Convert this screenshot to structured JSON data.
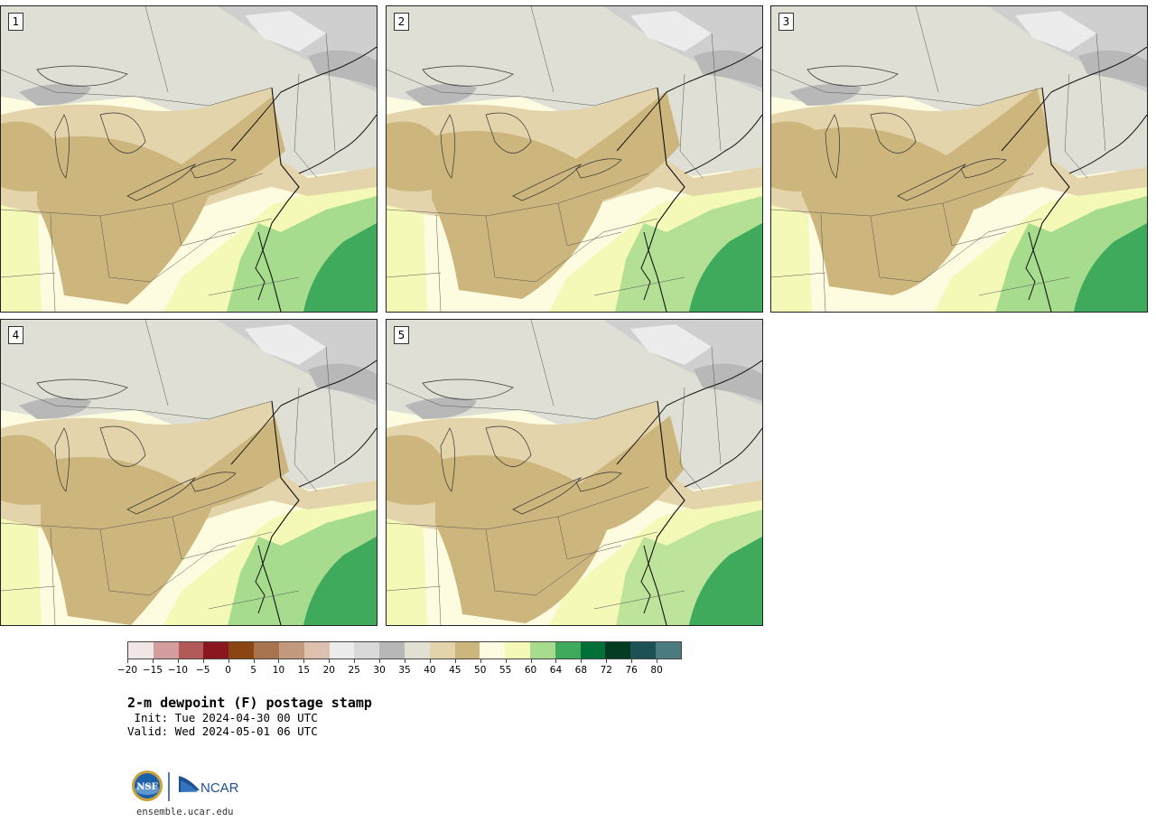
{
  "panels": [
    {
      "label": "1"
    },
    {
      "label": "2"
    },
    {
      "label": "3"
    },
    {
      "label": "4"
    },
    {
      "label": "5"
    }
  ],
  "colorbar": {
    "colors": [
      "#f0e6e6",
      "#d49e9e",
      "#b25a5a",
      "#8a1620",
      "#8b4513",
      "#a87450",
      "#c49a7e",
      "#ddc0ad",
      "#ececec",
      "#d9d9d9",
      "#b7b7b7",
      "#e1e0d3",
      "#e3d4ab",
      "#cdb67d",
      "#fdfce0",
      "#f5f9b8",
      "#a7dc8e",
      "#3faa5c",
      "#007038",
      "#033c22",
      "#1c5256",
      "#4a7b80"
    ],
    "tick_labels": [
      "−20",
      "−15",
      "−10",
      "−5",
      "0",
      "5",
      "10",
      "15",
      "20",
      "25",
      "30",
      "35",
      "40",
      "45",
      "50",
      "55",
      "60",
      "64",
      "68",
      "72",
      "76",
      "80"
    ]
  },
  "title": "2-m dewpoint (F) postage stamp",
  "init_text": " Init: Tue 2024-04-30 00 UTC",
  "valid_text": "Valid: Wed 2024-05-01 06 UTC",
  "logos": {
    "nsf_text": "NSF",
    "ncar_text": "NCAR"
  },
  "site_url": "ensemble.ucar.edu"
}
